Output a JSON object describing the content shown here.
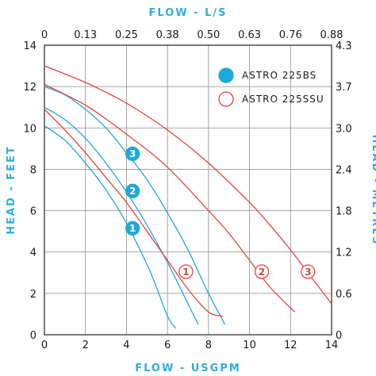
{
  "chart_data": {
    "type": "line",
    "x_bottom": {
      "label": "FLOW - USGPM",
      "range": [
        0,
        14
      ],
      "ticks": [
        "0",
        "2",
        "4",
        "6",
        "8",
        "10",
        "12",
        "14"
      ]
    },
    "x_top": {
      "label": "FLOW - L/S",
      "ticks": [
        "0",
        "0.13",
        "0.25",
        "0.38",
        "0.50",
        "0.63",
        "0.76",
        "0.88"
      ]
    },
    "y_left": {
      "label": "HEAD - FEET",
      "range": [
        0,
        14
      ],
      "ticks": [
        "0",
        "2",
        "4",
        "6",
        "8",
        "10",
        "12",
        "14"
      ]
    },
    "y_right": {
      "label": "HEAD - METRES",
      "ticks": [
        "0",
        "0.6",
        "1.2",
        "1.8",
        "2.4",
        "3.0",
        "3.7",
        "4.3"
      ]
    },
    "grid": true,
    "legend_position": "top-right",
    "legend": [
      {
        "label": "ASTRO 225BS",
        "style": "filled",
        "color": "#1fa8dc"
      },
      {
        "label": "ASTRO 225SSU",
        "style": "hollow",
        "color": "#e8423a"
      }
    ],
    "series": [
      {
        "group": "ASTRO 225BS",
        "marker": "1",
        "color": "#1fa8dc",
        "label_at": [
          4.3,
          5.15
        ],
        "x": [
          0,
          1,
          2,
          3,
          4,
          5,
          5.5,
          6,
          6.4
        ],
        "y": [
          10.1,
          9.4,
          8.3,
          7.0,
          5.4,
          3.4,
          2.2,
          0.9,
          0.3
        ]
      },
      {
        "group": "ASTRO 225BS",
        "marker": "2",
        "color": "#1fa8dc",
        "label_at": [
          4.3,
          6.95
        ],
        "x": [
          0,
          1,
          2,
          3,
          4,
          5,
          6,
          7,
          7.5
        ],
        "y": [
          11.0,
          10.4,
          9.5,
          8.3,
          6.9,
          5.3,
          3.5,
          1.5,
          0.5
        ]
      },
      {
        "group": "ASTRO 225BS",
        "marker": "3",
        "color": "#1fa8dc",
        "label_at": [
          4.3,
          8.75
        ],
        "x": [
          0,
          1,
          2,
          3,
          4,
          5,
          6,
          7,
          8,
          8.8
        ],
        "y": [
          12.0,
          11.6,
          10.9,
          10.0,
          8.8,
          7.5,
          5.9,
          4.1,
          2.0,
          0.5
        ]
      },
      {
        "group": "ASTRO 225SSU",
        "marker": "1",
        "color": "#e8423a",
        "label_at": [
          6.9,
          3.05
        ],
        "x": [
          0,
          1,
          2,
          3,
          4,
          5,
          6,
          7,
          8,
          8.7
        ],
        "y": [
          10.9,
          9.9,
          8.8,
          7.6,
          6.4,
          5.0,
          3.6,
          2.2,
          1.1,
          0.9
        ]
      },
      {
        "group": "ASTRO 225SSU",
        "marker": "2",
        "color": "#e8423a",
        "label_at": [
          10.6,
          3.05
        ],
        "x": [
          0,
          2,
          4,
          6,
          8,
          9,
          10,
          11,
          12.2
        ],
        "y": [
          12.1,
          11.1,
          9.7,
          8.1,
          6.0,
          4.9,
          3.6,
          2.3,
          1.1
        ]
      },
      {
        "group": "ASTRO 225SSU",
        "marker": "3",
        "color": "#e8423a",
        "label_at": [
          12.85,
          3.05
        ],
        "x": [
          0,
          2,
          4,
          6,
          8,
          10,
          11,
          12,
          13,
          14
        ],
        "y": [
          13.0,
          12.2,
          11.2,
          9.9,
          8.3,
          6.4,
          5.3,
          4.1,
          2.8,
          1.5
        ]
      }
    ]
  }
}
